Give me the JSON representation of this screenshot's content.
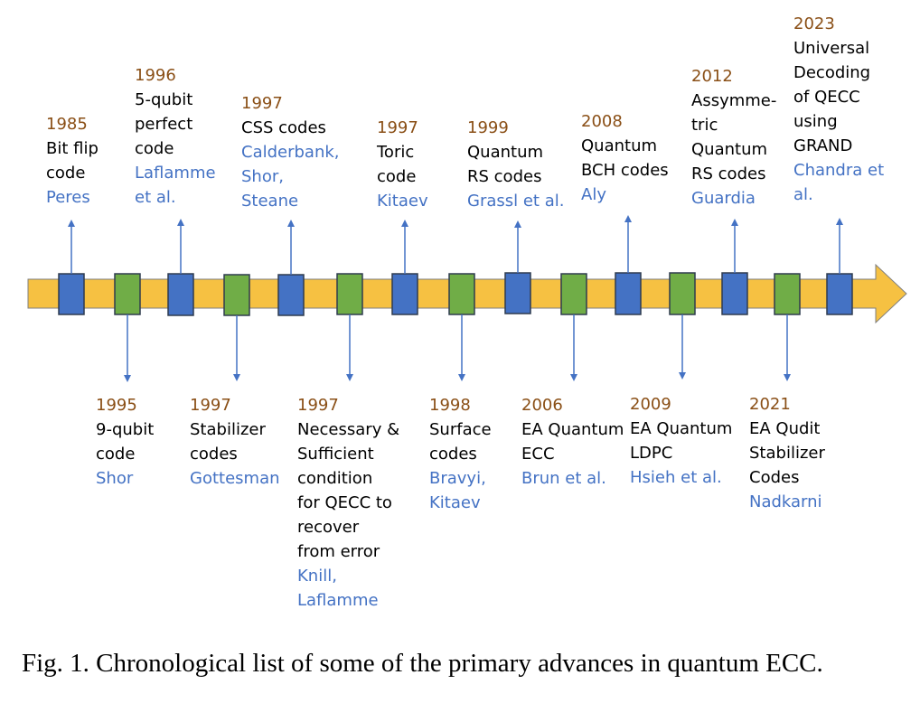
{
  "colors": {
    "bar": "#f6c142",
    "bar_outline": "#7f7f7f",
    "marker_blue": "#4472c4",
    "marker_green": "#70ad47",
    "marker_outline": "#2f3b4f",
    "arrow": "#4472c4",
    "year": "#8a4f16",
    "author": "#4472c4",
    "text": "#000000"
  },
  "markers": [
    "blue",
    "green",
    "blue",
    "green",
    "blue",
    "green",
    "blue",
    "green",
    "blue",
    "green",
    "blue",
    "green",
    "blue",
    "green",
    "blue"
  ],
  "events_above": [
    {
      "year": "1985",
      "lines": [
        "Bit flip",
        "code"
      ],
      "authors": [
        "Peres"
      ]
    },
    {
      "year": "1996",
      "lines": [
        "5-qubit",
        "perfect",
        "code"
      ],
      "authors": [
        "Laflamme",
        "et al."
      ]
    },
    {
      "year": "1997",
      "lines": [
        "CSS codes"
      ],
      "authors": [
        "Calderbank,",
        "Shor,",
        "Steane"
      ]
    },
    {
      "year": "1997",
      "lines": [
        "Toric",
        "code"
      ],
      "authors": [
        "Kitaev"
      ]
    },
    {
      "year": "1999",
      "lines": [
        "Quantum",
        "RS codes"
      ],
      "authors": [
        "Grassl et al."
      ]
    },
    {
      "year": "2008",
      "lines": [
        "Quantum",
        "BCH codes"
      ],
      "authors": [
        "Aly"
      ]
    },
    {
      "year": "2012",
      "lines": [
        "Assymme-",
        "tric",
        "Quantum",
        "RS codes"
      ],
      "authors": [
        "Guardia"
      ]
    },
    {
      "year": "2023",
      "lines": [
        "Universal",
        "Decoding",
        "of QECC",
        "using",
        "GRAND"
      ],
      "authors": [
        "Chandra et",
        "al."
      ]
    }
  ],
  "events_below": [
    {
      "year": "1995",
      "lines": [
        "9-qubit",
        "code"
      ],
      "authors": [
        "Shor"
      ]
    },
    {
      "year": "1997",
      "lines": [
        "Stabilizer",
        "codes"
      ],
      "authors": [
        "Gottesman"
      ]
    },
    {
      "year": "1997",
      "lines": [
        "Necessary &",
        "Sufficient",
        "condition",
        "for QECC to",
        "recover",
        "from error"
      ],
      "authors": [
        "Knill,",
        "Laflamme"
      ]
    },
    {
      "year": "1998",
      "lines": [
        "Surface",
        "codes"
      ],
      "authors": [
        "Bravyi,",
        "Kitaev"
      ]
    },
    {
      "year": "2006",
      "lines": [
        "EA Quantum",
        "ECC"
      ],
      "authors": [
        "Brun et al."
      ]
    },
    {
      "year": "2009",
      "lines": [
        "EA Quantum",
        "LDPC"
      ],
      "authors": [
        "Hsieh et al."
      ]
    },
    {
      "year": "2021",
      "lines": [
        "EA Qudit",
        "Stabilizer",
        "Codes"
      ],
      "authors": [
        "Nadkarni"
      ]
    }
  ],
  "caption": "Fig. 1.  Chronological list of some of the primary advances in quantum ECC."
}
